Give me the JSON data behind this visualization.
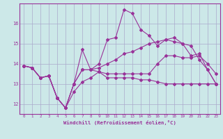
{
  "xlabel": "Windchill (Refroidissement éolien,°C)",
  "bg_color": "#cce8e8",
  "grid_color": "#aaaacc",
  "line_color": "#993399",
  "x_min": -0.5,
  "x_max": 23.5,
  "y_min": 11.5,
  "y_max": 17.0,
  "yticks": [
    12,
    13,
    14,
    15,
    16
  ],
  "xticks": [
    0,
    1,
    2,
    3,
    4,
    5,
    6,
    7,
    8,
    9,
    10,
    11,
    12,
    13,
    14,
    15,
    16,
    17,
    18,
    19,
    20,
    21,
    22,
    23
  ],
  "series": [
    [
      13.9,
      13.8,
      13.3,
      13.4,
      12.3,
      11.8,
      12.6,
      13.1,
      13.3,
      13.6,
      13.3,
      13.3,
      13.3,
      13.3,
      13.2,
      13.2,
      13.1,
      13.0,
      13.0,
      13.0,
      13.0,
      13.0,
      13.0,
      13.0
    ],
    [
      13.9,
      13.8,
      13.3,
      13.4,
      12.3,
      11.8,
      13.0,
      14.7,
      13.7,
      14.0,
      15.2,
      15.3,
      16.7,
      16.5,
      15.7,
      15.4,
      14.9,
      15.2,
      15.1,
      15.0,
      14.4,
      14.5,
      13.7,
      13.0
    ],
    [
      13.9,
      13.8,
      13.3,
      13.4,
      12.3,
      11.8,
      13.0,
      13.7,
      13.7,
      13.6,
      13.5,
      13.5,
      13.5,
      13.5,
      13.5,
      13.5,
      14.0,
      14.4,
      14.4,
      14.3,
      14.3,
      14.4,
      14.0,
      13.5
    ],
    [
      13.9,
      13.8,
      13.3,
      13.4,
      12.3,
      11.8,
      13.0,
      13.7,
      13.7,
      13.8,
      14.0,
      14.2,
      14.5,
      14.6,
      14.8,
      15.0,
      15.1,
      15.2,
      15.3,
      15.0,
      14.9,
      14.2,
      13.7,
      13.0
    ]
  ]
}
